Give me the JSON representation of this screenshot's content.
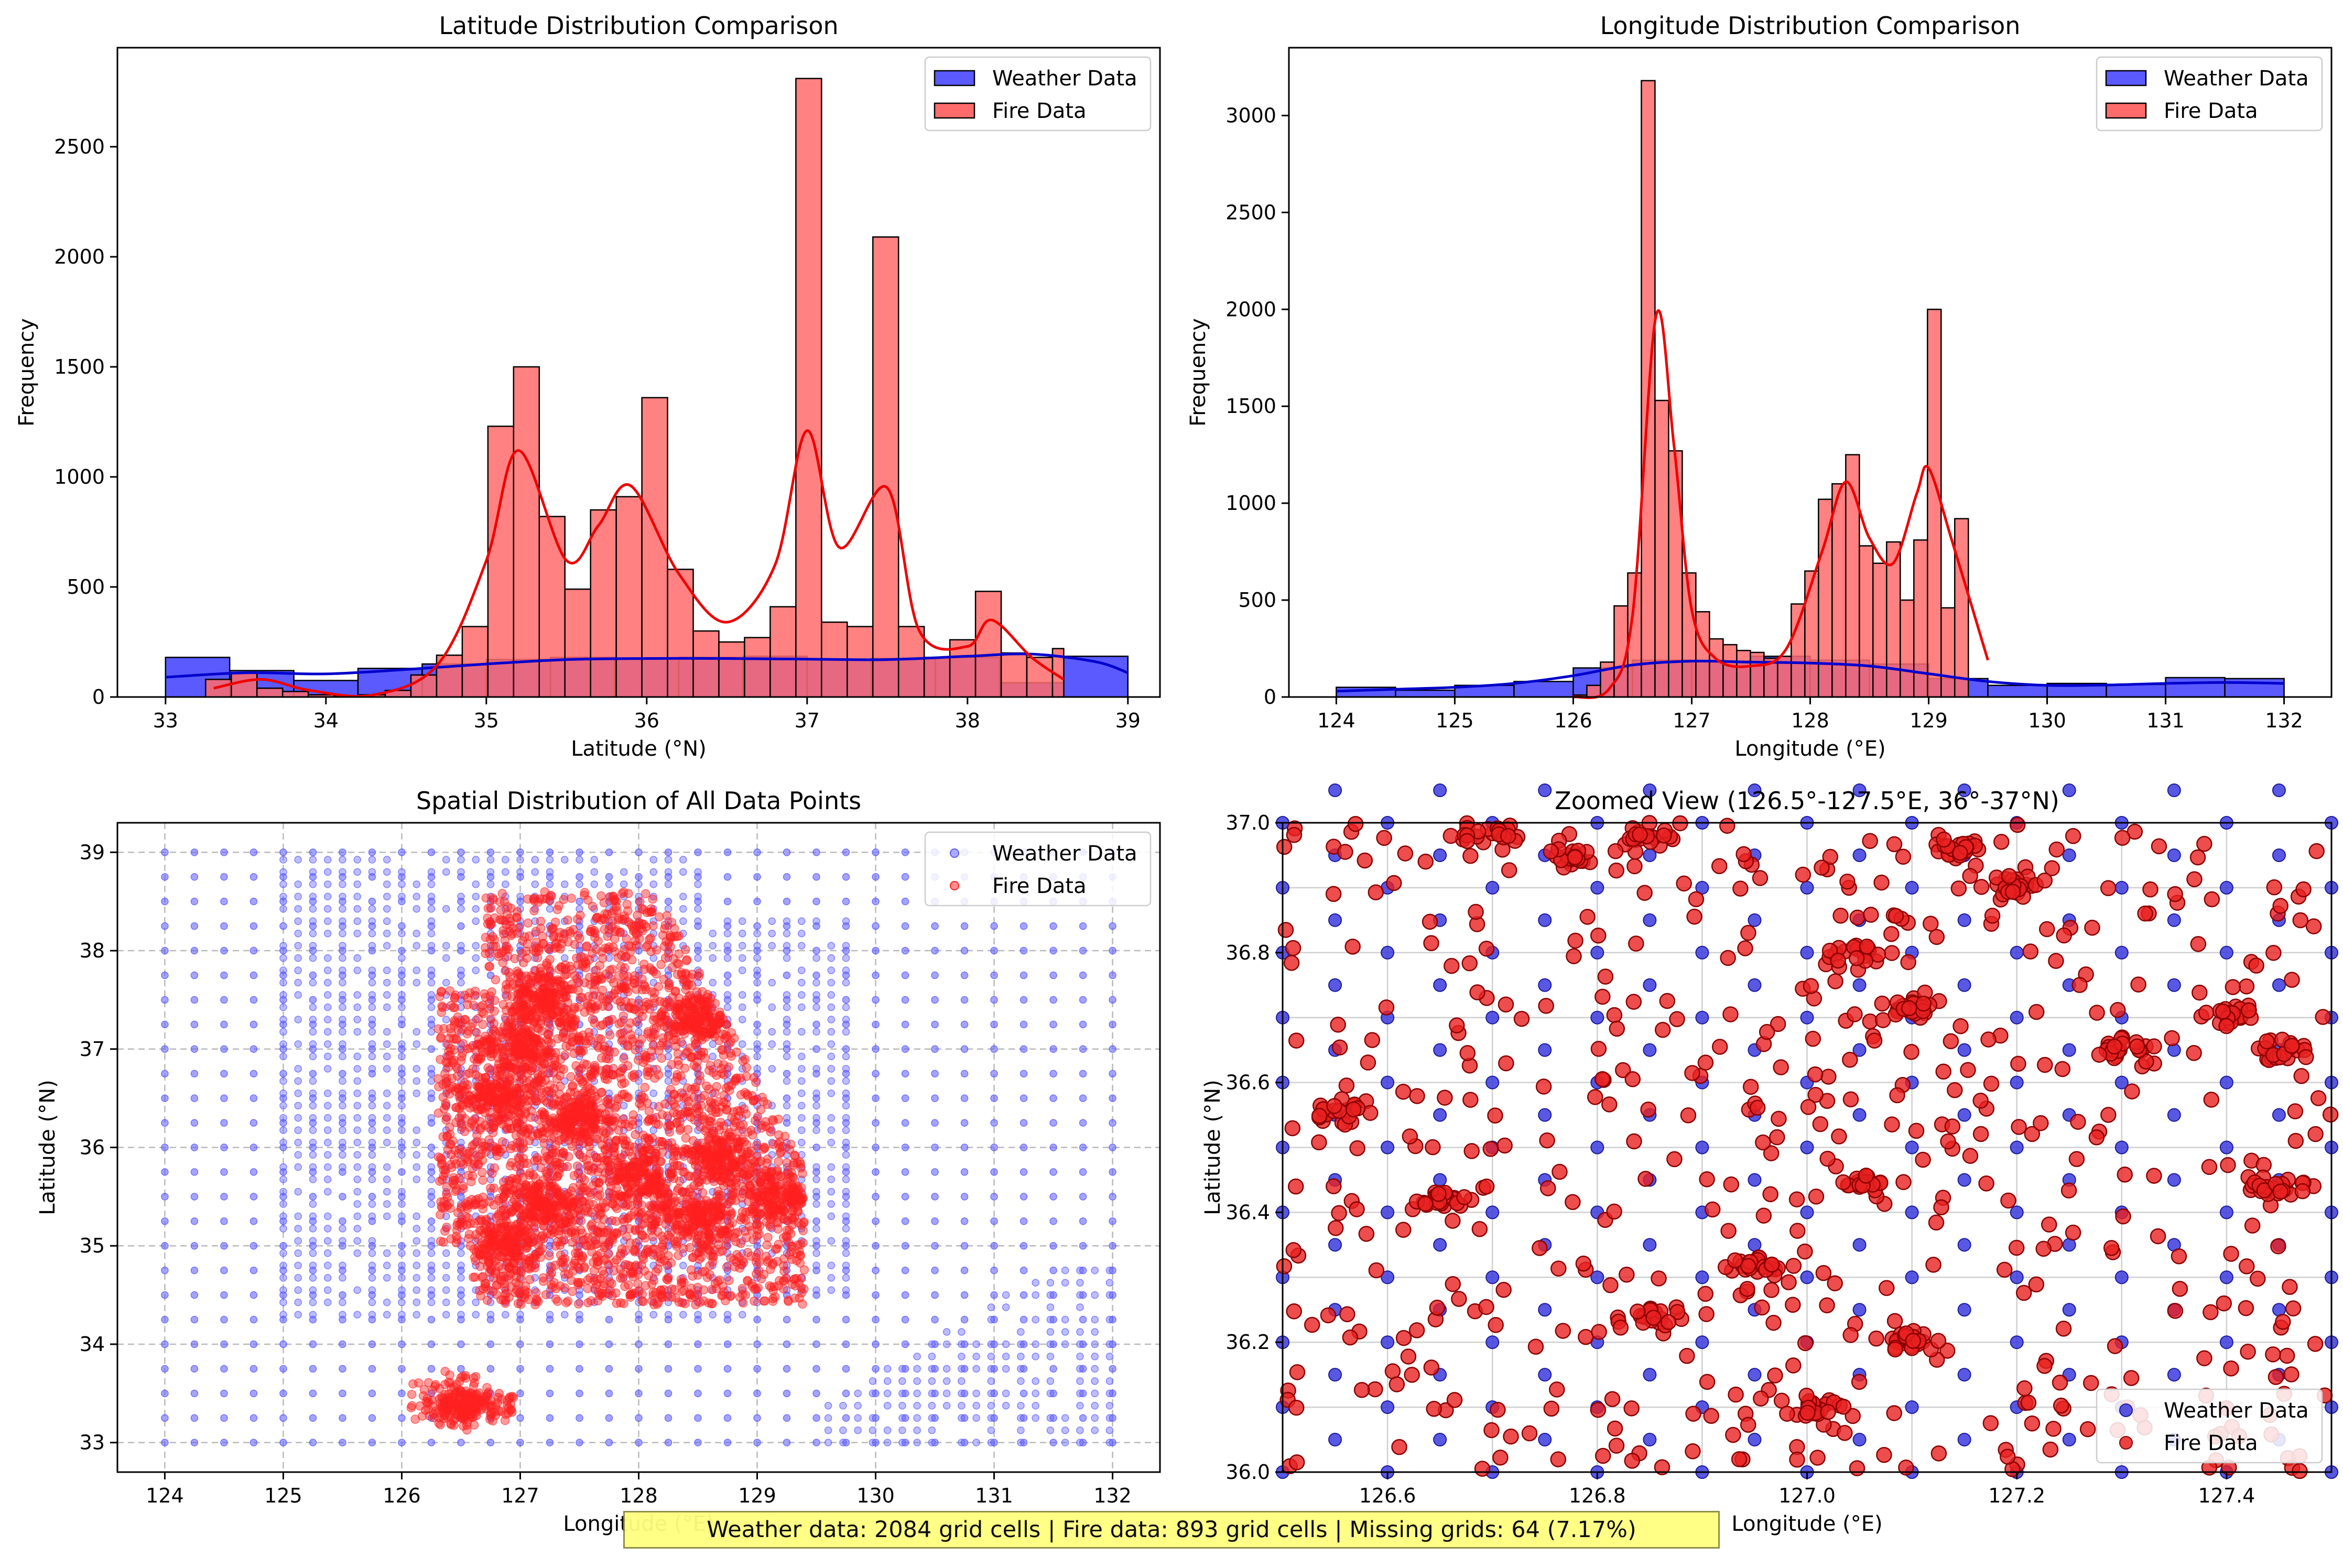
{
  "figure_footer": {
    "summary_text": "Weather data: 2084 grid cells | Fire data: 893 grid cells | Missing grids: 64 (7.17%)"
  },
  "colors": {
    "weather": "#5a5aff",
    "fire": "#ff6b6b",
    "fire_point": "#ff2020",
    "fire_kde": "#ee0000",
    "weather_kde": "#0000cc",
    "overlap": "#b3357a"
  },
  "chart_data": [
    {
      "type": "bar",
      "title": "Latitude Distribution Comparison",
      "xlabel": "Latitude (°N)",
      "ylabel": "Frequency",
      "xlim": [
        32.7,
        39.2
      ],
      "ylim": [
        0,
        2950
      ],
      "xticks": [
        33,
        34,
        35,
        36,
        37,
        38,
        39
      ],
      "yticks": [
        0,
        500,
        1000,
        1500,
        2000,
        2500
      ],
      "grid": false,
      "legend": "top-right",
      "series": [
        {
          "name": "Weather Data",
          "kind": "histogram",
          "bins": [
            [
              33.0,
              33.4,
              180
            ],
            [
              33.4,
              33.8,
              120
            ],
            [
              33.8,
              34.2,
              75
            ],
            [
              34.2,
              34.6,
              130
            ],
            [
              34.6,
              35.0,
              150
            ],
            [
              35.0,
              35.4,
              170
            ],
            [
              35.4,
              35.8,
              180
            ],
            [
              35.8,
              36.2,
              175
            ],
            [
              36.2,
              36.6,
              180
            ],
            [
              36.6,
              37.0,
              185
            ],
            [
              37.0,
              37.4,
              170
            ],
            [
              37.4,
              37.8,
              175
            ],
            [
              37.8,
              38.2,
              180
            ],
            [
              38.2,
              38.6,
              65
            ],
            [
              38.6,
              39.0,
              185
            ]
          ],
          "kde": [
            [
              33.0,
              90
            ],
            [
              33.5,
              110
            ],
            [
              34.0,
              105
            ],
            [
              34.5,
              125
            ],
            [
              35.0,
              150
            ],
            [
              35.5,
              170
            ],
            [
              36.0,
              175
            ],
            [
              36.5,
              175
            ],
            [
              37.0,
              172
            ],
            [
              37.5,
              170
            ],
            [
              38.0,
              185
            ],
            [
              38.4,
              195
            ],
            [
              38.8,
              160
            ],
            [
              39.0,
              110
            ]
          ]
        },
        {
          "name": "Fire Data",
          "kind": "histogram",
          "bins": [
            [
              33.25,
              33.41,
              80
            ],
            [
              33.41,
              33.57,
              110
            ],
            [
              33.57,
              33.73,
              40
            ],
            [
              33.73,
              33.89,
              25
            ],
            [
              33.89,
              34.05,
              10
            ],
            [
              34.05,
              34.21,
              5
            ],
            [
              34.21,
              34.37,
              10
            ],
            [
              34.37,
              34.53,
              30
            ],
            [
              34.53,
              34.69,
              100
            ],
            [
              34.69,
              34.85,
              190
            ],
            [
              34.85,
              35.01,
              320
            ],
            [
              35.01,
              35.17,
              1230
            ],
            [
              35.17,
              35.33,
              1500
            ],
            [
              35.33,
              35.49,
              820
            ],
            [
              35.49,
              35.65,
              490
            ],
            [
              35.65,
              35.81,
              850
            ],
            [
              35.81,
              35.97,
              910
            ],
            [
              35.97,
              36.13,
              1360
            ],
            [
              36.13,
              36.29,
              580
            ],
            [
              36.29,
              36.45,
              300
            ],
            [
              36.45,
              36.61,
              250
            ],
            [
              36.61,
              36.77,
              270
            ],
            [
              36.77,
              36.93,
              410
            ],
            [
              36.93,
              37.09,
              2810
            ],
            [
              37.09,
              37.25,
              340
            ],
            [
              37.25,
              37.41,
              320
            ],
            [
              37.41,
              37.57,
              2090
            ],
            [
              37.57,
              37.73,
              320
            ],
            [
              37.73,
              37.89,
              180
            ],
            [
              37.89,
              38.05,
              260
            ],
            [
              38.05,
              38.21,
              480
            ],
            [
              38.21,
              38.37,
              200
            ],
            [
              38.37,
              38.53,
              180
            ],
            [
              38.53,
              38.6,
              220
            ]
          ],
          "kde": [
            [
              33.3,
              40
            ],
            [
              33.6,
              80
            ],
            [
              33.9,
              30
            ],
            [
              34.3,
              10
            ],
            [
              34.7,
              150
            ],
            [
              35.0,
              620
            ],
            [
              35.2,
              1120
            ],
            [
              35.5,
              620
            ],
            [
              35.7,
              780
            ],
            [
              35.9,
              960
            ],
            [
              36.2,
              560
            ],
            [
              36.5,
              340
            ],
            [
              36.8,
              600
            ],
            [
              37.0,
              1210
            ],
            [
              37.2,
              680
            ],
            [
              37.5,
              950
            ],
            [
              37.7,
              300
            ],
            [
              38.0,
              230
            ],
            [
              38.15,
              350
            ],
            [
              38.4,
              180
            ],
            [
              38.6,
              80
            ]
          ]
        }
      ]
    },
    {
      "type": "bar",
      "title": "Longitude Distribution Comparison",
      "xlabel": "Longitude (°E)",
      "ylabel": "Frequency",
      "xlim": [
        123.6,
        132.4
      ],
      "ylim": [
        0,
        3350
      ],
      "xticks": [
        124,
        125,
        126,
        127,
        128,
        129,
        130,
        131,
        132
      ],
      "yticks": [
        0,
        500,
        1000,
        1500,
        2000,
        2500,
        3000
      ],
      "grid": false,
      "legend": "top-right",
      "series": [
        {
          "name": "Weather Data",
          "kind": "histogram",
          "bins": [
            [
              124.0,
              124.5,
              50
            ],
            [
              124.5,
              125.0,
              35
            ],
            [
              125.0,
              125.5,
              60
            ],
            [
              125.5,
              126.0,
              80
            ],
            [
              126.0,
              126.5,
              150
            ],
            [
              126.5,
              127.0,
              190
            ],
            [
              127.0,
              127.5,
              185
            ],
            [
              127.5,
              128.0,
              210
            ],
            [
              128.0,
              128.5,
              190
            ],
            [
              128.5,
              129.0,
              170
            ],
            [
              129.0,
              129.5,
              95
            ],
            [
              129.5,
              130.0,
              60
            ],
            [
              130.0,
              130.5,
              70
            ],
            [
              130.5,
              131.0,
              65
            ],
            [
              131.0,
              131.5,
              100
            ],
            [
              131.5,
              132.0,
              95
            ]
          ],
          "kde": [
            [
              124.0,
              30
            ],
            [
              124.5,
              40
            ],
            [
              125.0,
              50
            ],
            [
              125.5,
              70
            ],
            [
              126.0,
              110
            ],
            [
              126.5,
              165
            ],
            [
              127.0,
              185
            ],
            [
              127.5,
              180
            ],
            [
              128.0,
              175
            ],
            [
              128.5,
              160
            ],
            [
              129.0,
              120
            ],
            [
              129.5,
              80
            ],
            [
              130.0,
              60
            ],
            [
              130.5,
              62
            ],
            [
              131.0,
              70
            ],
            [
              131.5,
              75
            ],
            [
              132.0,
              70
            ]
          ]
        },
        {
          "name": "Fire Data",
          "kind": "histogram",
          "bins": [
            [
              126.0,
              126.115,
              10
            ],
            [
              126.115,
              126.23,
              60
            ],
            [
              126.23,
              126.345,
              180
            ],
            [
              126.345,
              126.46,
              470
            ],
            [
              126.46,
              126.575,
              640
            ],
            [
              126.575,
              126.69,
              3180
            ],
            [
              126.69,
              126.805,
              1530
            ],
            [
              126.805,
              126.92,
              1270
            ],
            [
              126.92,
              127.035,
              640
            ],
            [
              127.035,
              127.15,
              440
            ],
            [
              127.15,
              127.265,
              300
            ],
            [
              127.265,
              127.38,
              270
            ],
            [
              127.38,
              127.495,
              240
            ],
            [
              127.495,
              127.61,
              230
            ],
            [
              127.61,
              127.725,
              200
            ],
            [
              127.725,
              127.84,
              210
            ],
            [
              127.84,
              127.955,
              480
            ],
            [
              127.955,
              128.07,
              650
            ],
            [
              128.07,
              128.185,
              1020
            ],
            [
              128.185,
              128.3,
              1100
            ],
            [
              128.3,
              128.415,
              1250
            ],
            [
              128.415,
              128.53,
              780
            ],
            [
              128.53,
              128.645,
              690
            ],
            [
              128.645,
              128.76,
              800
            ],
            [
              128.76,
              128.875,
              500
            ],
            [
              128.875,
              128.99,
              810
            ],
            [
              128.99,
              129.105,
              2000
            ],
            [
              129.105,
              129.22,
              460
            ],
            [
              129.22,
              129.335,
              920
            ]
          ],
          "kde": [
            [
              126.0,
              0
            ],
            [
              126.3,
              40
            ],
            [
              126.5,
              420
            ],
            [
              126.7,
              1970
            ],
            [
              126.85,
              1300
            ],
            [
              127.0,
              450
            ],
            [
              127.2,
              200
            ],
            [
              127.5,
              160
            ],
            [
              127.8,
              250
            ],
            [
              128.1,
              750
            ],
            [
              128.3,
              1110
            ],
            [
              128.5,
              820
            ],
            [
              128.7,
              690
            ],
            [
              128.9,
              1050
            ],
            [
              129.0,
              1180
            ],
            [
              129.2,
              800
            ],
            [
              129.5,
              190
            ]
          ]
        }
      ]
    },
    {
      "type": "scatter",
      "title": "Spatial Distribution of All Data Points",
      "xlabel": "Longitude (°E)",
      "ylabel": "Latitude (°N)",
      "xlim": [
        123.6,
        132.4
      ],
      "ylim": [
        32.7,
        39.3
      ],
      "xticks": [
        124,
        125,
        126,
        127,
        128,
        129,
        130,
        131,
        132
      ],
      "yticks": [
        33,
        34,
        35,
        36,
        37,
        38,
        39
      ],
      "grid": true,
      "legend": "top-right",
      "series": [
        {
          "name": "Weather Data",
          "grid_spacing_deg": 0.125,
          "lon_range": [
            124.0,
            132.0
          ],
          "lat_range": [
            33.0,
            39.0
          ]
        },
        {
          "name": "Fire Data",
          "approx_extent": {
            "lon": [
              126.2,
              129.5
            ],
            "lat": [
              33.3,
              38.6
            ]
          },
          "clusters": [
            [
              127.0,
              37.0
            ],
            [
              127.2,
              37.5
            ],
            [
              126.8,
              36.5
            ],
            [
              127.5,
              36.3
            ],
            [
              128.0,
              35.7
            ],
            [
              128.5,
              35.3
            ],
            [
              128.7,
              35.9
            ],
            [
              127.2,
              35.4
            ],
            [
              126.9,
              35.0
            ],
            [
              129.2,
              35.5
            ],
            [
              128.5,
              37.3
            ],
            [
              126.5,
              33.4
            ]
          ]
        }
      ]
    },
    {
      "type": "scatter",
      "title": "Zoomed View (126.5°-127.5°E, 36°-37°N)",
      "xlabel": "Longitude (°E)",
      "ylabel": "Latitude (°N)",
      "xlim": [
        126.5,
        127.5
      ],
      "ylim": [
        36.0,
        37.0
      ],
      "xticks": [
        126.6,
        126.8,
        127.0,
        127.2,
        127.4
      ],
      "yticks": [
        36.0,
        36.2,
        36.4,
        36.6,
        36.8,
        37.0
      ],
      "grid": true,
      "legend": "bottom-right",
      "series": [
        {
          "name": "Weather Data",
          "grid_spacing_deg": 0.1,
          "lon_range": [
            126.5,
            127.5
          ],
          "lat_range": [
            36.0,
            37.0
          ]
        },
        {
          "name": "Fire Data",
          "clusters": [
            [
              126.7,
              36.98
            ],
            [
              126.85,
              36.98
            ],
            [
              126.78,
              36.95
            ],
            [
              127.15,
              36.96
            ],
            [
              126.85,
              36.24
            ],
            [
              127.0,
              36.1
            ],
            [
              127.1,
              36.2
            ],
            [
              127.45,
              36.44
            ],
            [
              127.45,
              36.65
            ],
            [
              127.3,
              36.65
            ],
            [
              126.55,
              36.55
            ],
            [
              126.95,
              36.32
            ],
            [
              127.05,
              36.8
            ],
            [
              127.1,
              36.72
            ],
            [
              127.05,
              36.45
            ],
            [
              126.65,
              36.42
            ],
            [
              127.4,
              36.7
            ],
            [
              127.2,
              36.9
            ]
          ]
        }
      ]
    }
  ]
}
